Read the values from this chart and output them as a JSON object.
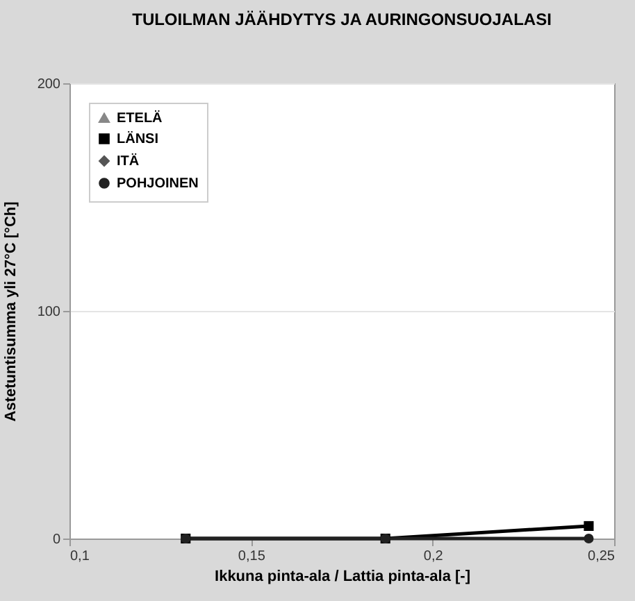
{
  "chart_data": {
    "type": "line",
    "title": "TULOILMAN JÄÄHDYTYS JA AURINGONSUOJALASI",
    "xlabel": "Ikkuna pinta-ala / Lattia pinta-ala [-]",
    "ylabel": "Astetuntisumma yli 27°C [°Ch]",
    "x": [
      0.132,
      0.187,
      0.243
    ],
    "series": [
      {
        "name": "ETELÄ",
        "color": "#888888",
        "marker": "triangle",
        "values": [
          null,
          null,
          null
        ]
      },
      {
        "name": "LÄNSI",
        "color": "#000000",
        "marker": "square",
        "values": [
          0,
          0,
          5.5
        ]
      },
      {
        "name": "ITÄ",
        "color": "#555555",
        "marker": "diamond",
        "values": [
          0,
          0,
          null
        ]
      },
      {
        "name": "POHJOINEN",
        "color": "#222222",
        "marker": "circle",
        "values": [
          0,
          0,
          0
        ]
      }
    ],
    "xlim": [
      0.1,
      0.25
    ],
    "xticks": [
      {
        "value": 0.1,
        "label": "0,1"
      },
      {
        "value": 0.15,
        "label": "0,15"
      },
      {
        "value": 0.2,
        "label": "0,2"
      },
      {
        "value": 0.25,
        "label": "0,25"
      }
    ],
    "ylim": [
      0,
      200
    ],
    "yticks": [
      0,
      100,
      200
    ],
    "grid": "y",
    "legend": "top left",
    "line_style": "solid"
  }
}
